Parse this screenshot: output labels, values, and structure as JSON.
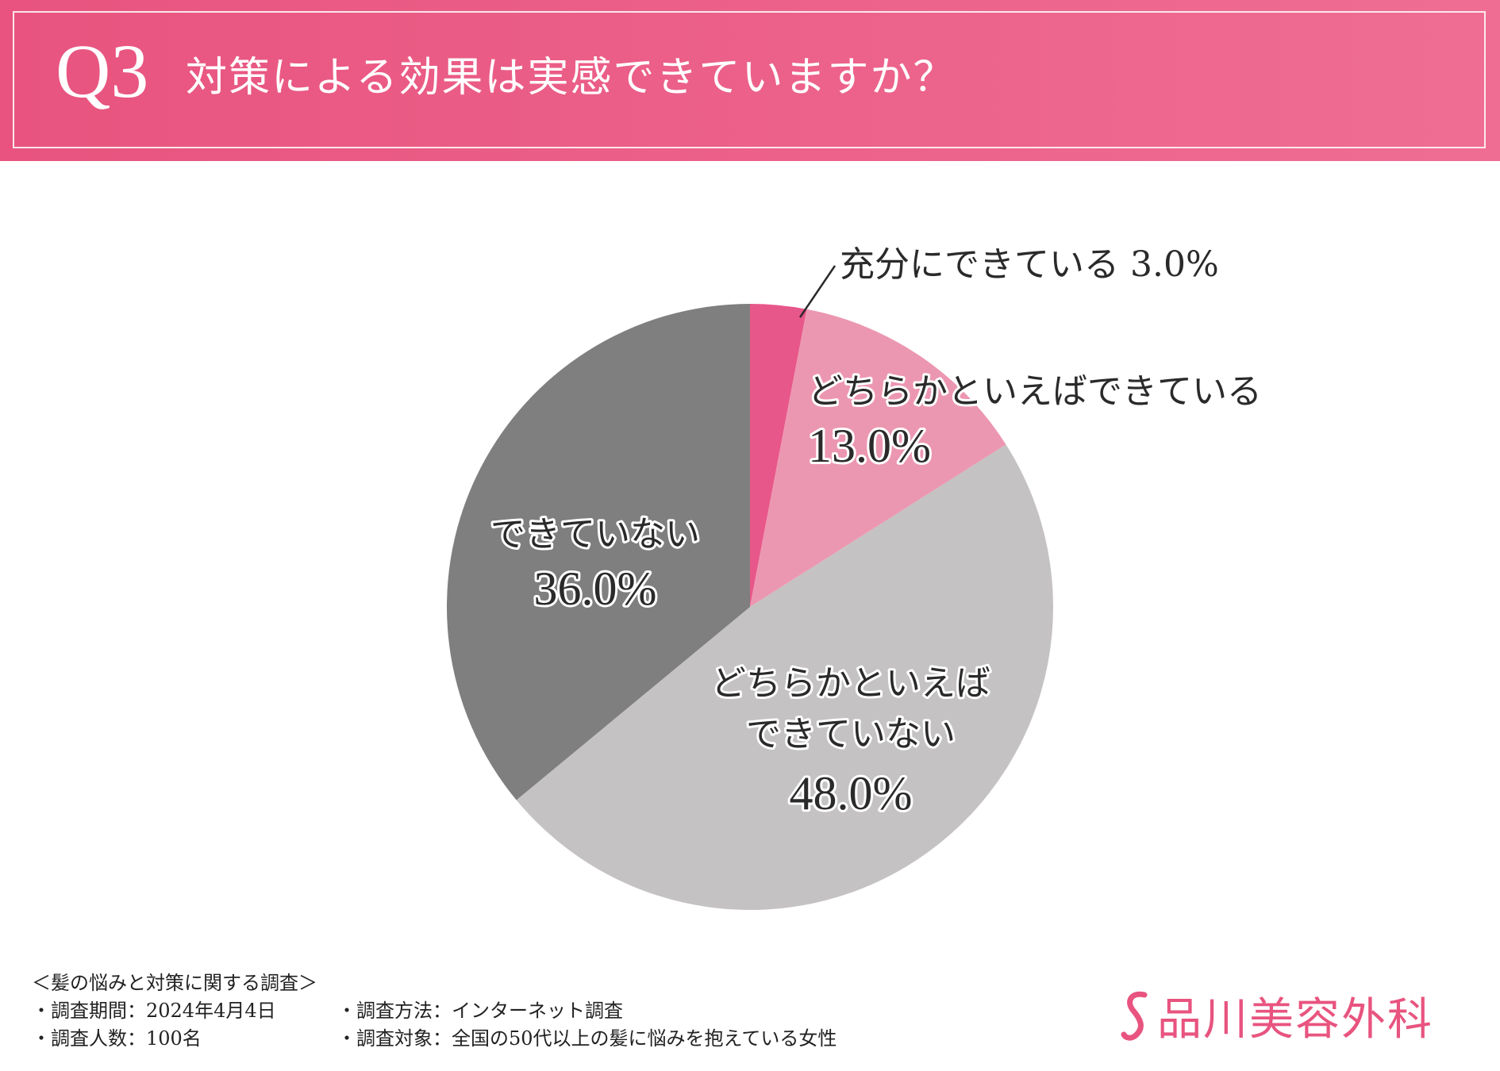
{
  "header": {
    "question_id": "Q3",
    "question": "対策による効果は実感できていますか？"
  },
  "chart_data": {
    "type": "pie",
    "title": "対策による効果は実感できていますか？",
    "start_angle_deg": 0,
    "direction": "clockwise",
    "slices": [
      {
        "label_lines": [
          "充分にできている 3.0%"
        ],
        "label": "充分にできている",
        "value": 3.0,
        "display": "3.0%",
        "color": "#e8578a"
      },
      {
        "label_lines": [
          "どちらかといえばできている"
        ],
        "label": "どちらかといえばできている",
        "value": 13.0,
        "display": "13.0%",
        "color": "#ec97b1"
      },
      {
        "label_lines": [
          "どちらかといえば",
          "できていない"
        ],
        "label": "どちらかといえばできていない",
        "value": 48.0,
        "display": "48.0%",
        "color": "#c5c2c3"
      },
      {
        "label_lines": [
          "できていない"
        ],
        "label": "できていない",
        "value": 36.0,
        "display": "36.0%",
        "color": "#7f7f7f"
      }
    ]
  },
  "footer": {
    "survey_title": "＜髪の悩みと対策に関する調査＞",
    "period": "・調査期間：2024年4月4日",
    "method": "・調査方法：インターネット調査",
    "respondents": "・調査人数：100名",
    "target": "・調査対象：全国の50代以上の髪に悩みを抱えている女性"
  },
  "logo": {
    "text": "品川美容外科",
    "color": "#e8547f"
  }
}
